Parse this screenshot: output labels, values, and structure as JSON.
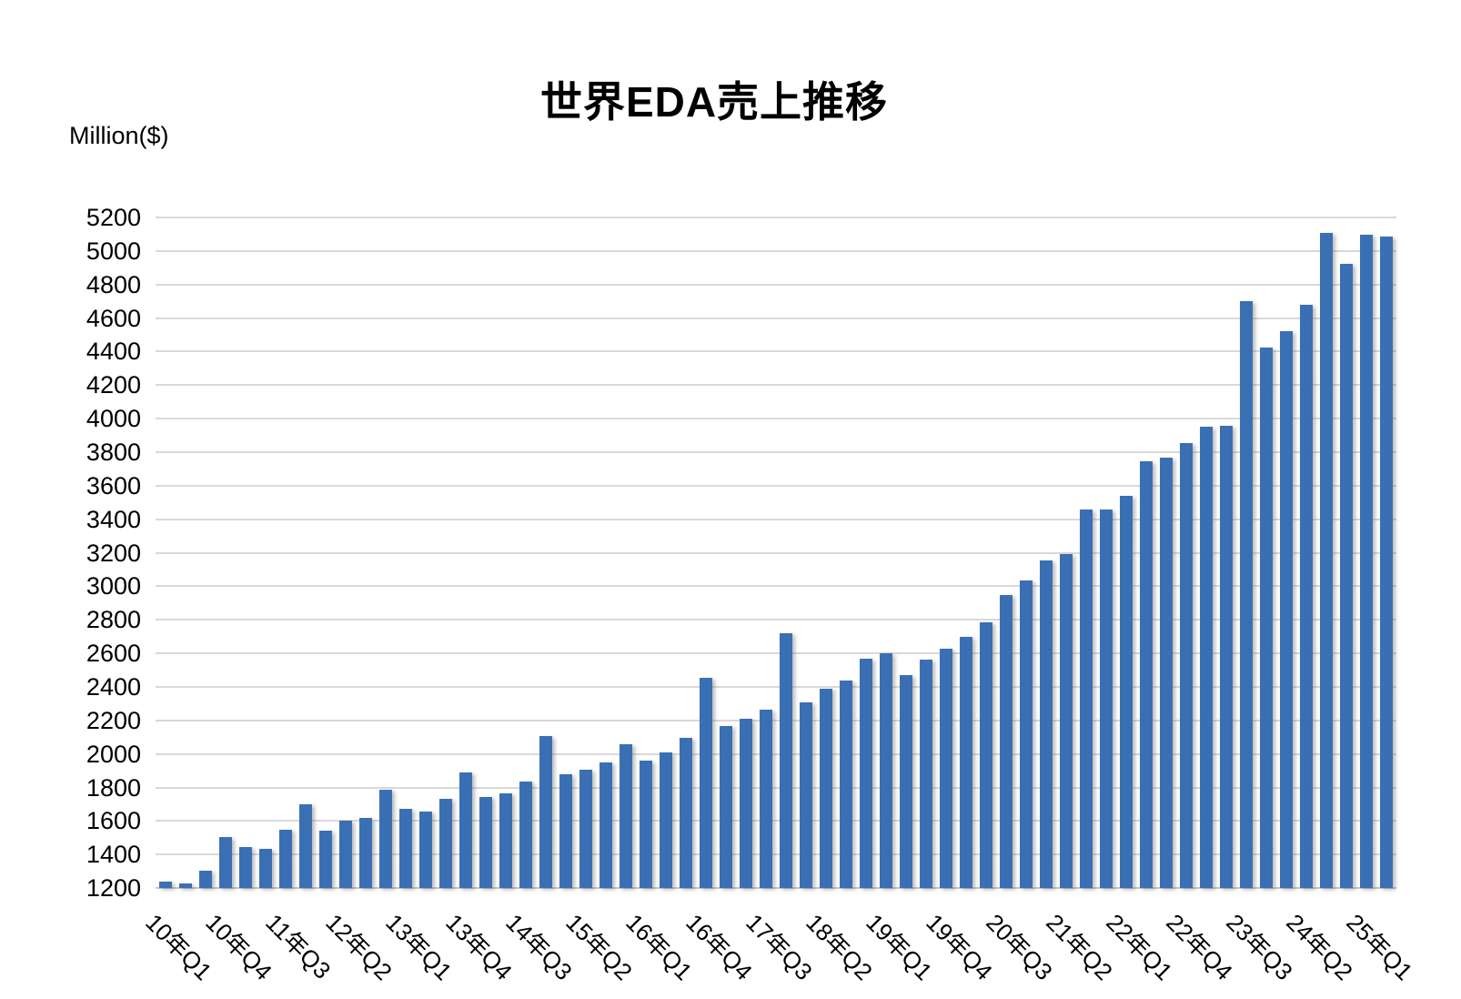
{
  "page": {
    "background": "#FFFFFF"
  },
  "chart_data": {
    "type": "bar",
    "title": "世界EDA売上推移",
    "ylabel": "Million($)",
    "xlabel": "",
    "ylim": [
      1200,
      5200
    ],
    "ytick_step": 200,
    "ytick_labels": [
      "1200",
      "1400",
      "1600",
      "1800",
      "2000",
      "2200",
      "2400",
      "2600",
      "2800",
      "3000",
      "3200",
      "3400",
      "3600",
      "3800",
      "4000",
      "4200",
      "4400",
      "4600",
      "4800",
      "5000",
      "5200"
    ],
    "categories": [
      "10年Q1",
      "10年Q2",
      "10年Q3",
      "10年Q4",
      "11年Q1",
      "11年Q2",
      "11年Q3",
      "11年Q4",
      "12年Q1",
      "12年Q2",
      "12年Q3",
      "12年Q4",
      "13年Q1",
      "13年Q2",
      "13年Q3",
      "13年Q4",
      "14年Q1",
      "14年Q2",
      "14年Q3",
      "14年Q4",
      "15年Q1",
      "15年Q2",
      "15年Q3",
      "15年Q4",
      "16年Q1",
      "16年Q2",
      "16年Q3",
      "16年Q4",
      "17年Q1",
      "17年Q2",
      "17年Q3",
      "17年Q4",
      "18年Q1",
      "18年Q2",
      "18年Q3",
      "18年Q4",
      "19年Q1",
      "19年Q2",
      "19年Q3",
      "19年Q4",
      "20年Q1",
      "20年Q2",
      "20年Q3",
      "20年Q4",
      "21年Q1",
      "21年Q2",
      "21年Q3",
      "21年Q4",
      "22年Q1",
      "22年Q2",
      "22年Q3",
      "22年Q4",
      "23年Q1",
      "23年Q2",
      "23年Q3",
      "23年Q4",
      "24年Q1",
      "24年Q2",
      "24年Q3",
      "24年Q4",
      "25年Q1",
      "25年Q2"
    ],
    "values": [
      1240,
      1225,
      1305,
      1505,
      1445,
      1435,
      1545,
      1700,
      1540,
      1600,
      1620,
      1785,
      1670,
      1655,
      1730,
      1890,
      1745,
      1765,
      1835,
      2105,
      1880,
      1905,
      1950,
      2060,
      1960,
      2010,
      2095,
      2455,
      2165,
      2210,
      2265,
      2720,
      2310,
      2390,
      2440,
      2570,
      2600,
      2470,
      2565,
      2630,
      2700,
      2785,
      2950,
      3035,
      3155,
      3190,
      3460,
      3460,
      3540,
      3745,
      3770,
      3855,
      3950,
      3960,
      4700,
      4425,
      4520,
      4680,
      5110,
      4925,
      5095,
      5085
    ],
    "xtick_every": 3,
    "xtick_labels_shown": [
      "10年Q1",
      "10年Q4",
      "11年Q3",
      "12年Q2",
      "13年Q1",
      "13年Q4",
      "14年Q3",
      "15年Q2",
      "16年Q1",
      "16年Q4",
      "17年Q3",
      "18年Q2",
      "19年Q1",
      "19年Q4",
      "20年Q3",
      "21年Q2",
      "22年Q1",
      "22年Q4",
      "23年Q3",
      "24年Q2",
      "25年Q1"
    ],
    "bar_color": "#3A6FB4",
    "gridline_color": "#D9D9D9",
    "axis_line_color": "#C6C6C6",
    "grid": "horizontal",
    "legend_position": "none"
  }
}
